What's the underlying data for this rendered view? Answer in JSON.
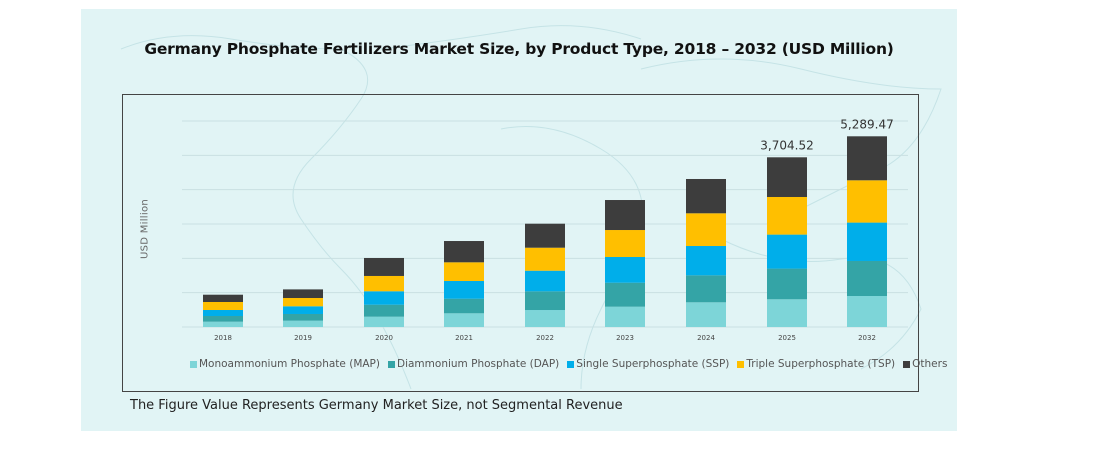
{
  "chart_data": {
    "type": "bar",
    "stacked": true,
    "title": "Germany Phosphate Fertilizers Market Size, by Product Type, 2018 – 2032 (USD Million)",
    "xlabel": "",
    "ylabel": "USD Million",
    "categories": [
      "2018",
      "2019",
      "2020",
      "2021",
      "2022",
      "2023",
      "2024",
      "2025",
      "2032"
    ],
    "series": [
      {
        "name": "Monoammonium Phosphate (MAP)",
        "color": "#7dd5d8",
        "values": [
          116,
          138,
          225,
          299,
          371,
          443,
          539,
          605,
          860
        ]
      },
      {
        "name": "Diammonium Phosphate (DAP)",
        "color": "#34a4a6",
        "values": [
          124,
          146,
          262,
          319,
          408,
          524,
          589,
          670,
          971
        ]
      },
      {
        "name": "Single Superphosphate (SSP)",
        "color": "#00aeea",
        "values": [
          131,
          168,
          293,
          386,
          450,
          561,
          640,
          742,
          1065
        ]
      },
      {
        "name": "Triple Superphosphate (TSP)",
        "color": "#ffbf00",
        "values": [
          175,
          181,
          334,
          408,
          502,
          589,
          714,
          821,
          1173
        ]
      },
      {
        "name": "Others",
        "color": "#3d3d3d",
        "values": [
          159,
          188,
          393,
          465,
          524,
          655,
          749,
          866.52,
          1220.47
        ]
      }
    ],
    "data_labels": [
      {
        "category": "2025",
        "text": "3,704.52"
      },
      {
        "category": "2032",
        "text": "5,289.47"
      }
    ],
    "totals_labeled": {
      "2025": 3704.52,
      "2032": 5289.47
    },
    "y_tick_labels_shown": false,
    "grid": true,
    "gridline_count": 7,
    "legend_position": "bottom"
  },
  "footnote": "The Figure Value Represents Germany Market Size, not Segmental Revenue",
  "background_color": "#e1f4f5"
}
